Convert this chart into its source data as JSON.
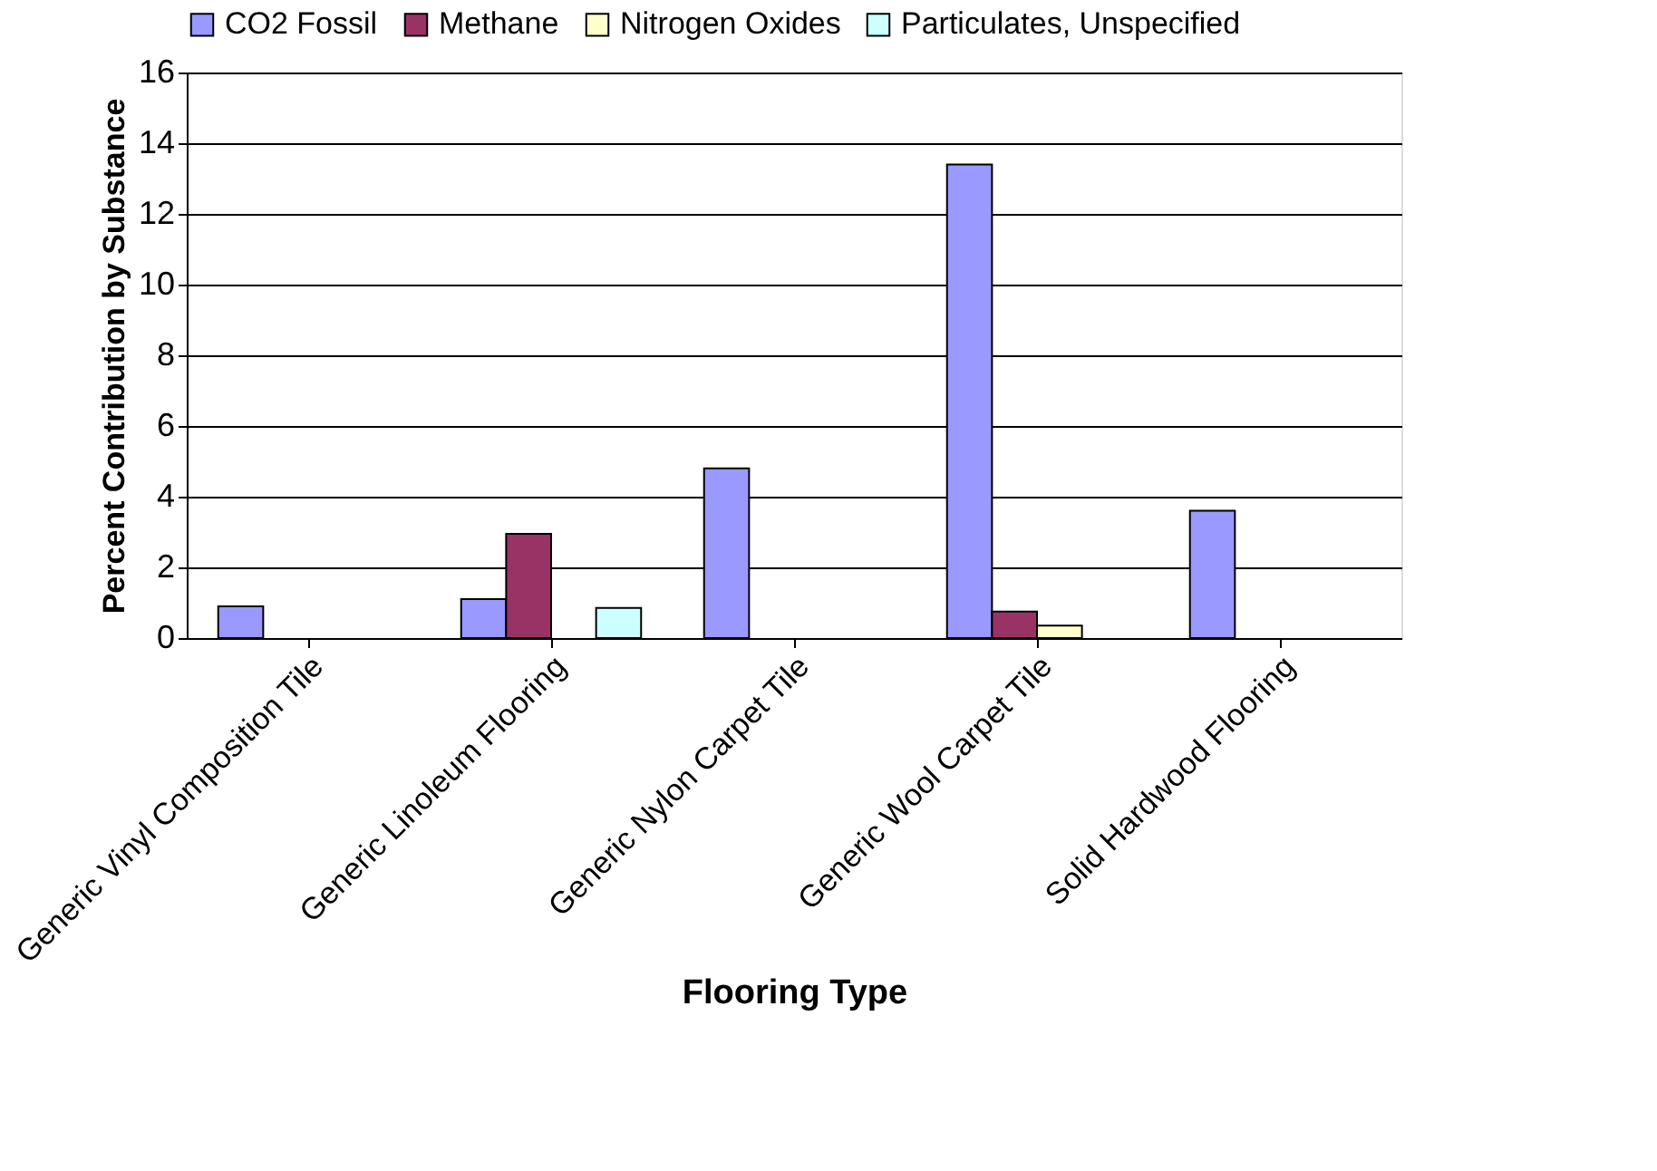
{
  "chart_data": {
    "type": "bar",
    "xlabel": "Flooring Type",
    "ylabel": "Percent Contribution by Substance",
    "categories": [
      "Generic Vinyl Composition Tile",
      "Generic Linoleum Flooring",
      "Generic Nylon Carpet Tile",
      "Generic Wool Carpet Tile",
      "Solid Hardwood Flooring"
    ],
    "series": [
      {
        "name": "CO2 Fossil",
        "color": "#9999ff",
        "values": [
          0.9,
          1.1,
          4.8,
          13.4,
          3.6
        ]
      },
      {
        "name": "Methane",
        "color": "#993366",
        "values": [
          null,
          2.95,
          null,
          0.75,
          null
        ]
      },
      {
        "name": "Nitrogen Oxides",
        "color": "#ffffcc",
        "values": [
          null,
          null,
          null,
          0.35,
          null
        ]
      },
      {
        "name": "Particulates, Unspecified",
        "color": "#ccffff",
        "values": [
          null,
          0.85,
          null,
          null,
          null
        ]
      }
    ],
    "ylim": [
      0,
      16
    ],
    "yticks": [
      0,
      2,
      4,
      6,
      8,
      10,
      12,
      14,
      16
    ],
    "grid": "y",
    "legend": "top"
  }
}
